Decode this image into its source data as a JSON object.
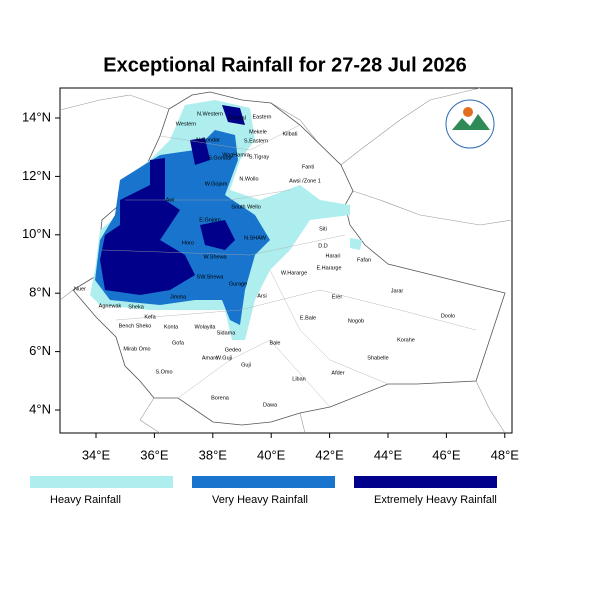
{
  "title": "Exceptional Rainfall for 27-28 Jul 2026",
  "x_axis": {
    "ticks": [
      "34°E",
      "36°E",
      "38°E",
      "40°E",
      "42°E",
      "44°E",
      "46°E",
      "48°E"
    ]
  },
  "y_axis": {
    "ticks": [
      "14°N",
      "12°N",
      "10°N",
      "8°N",
      "6°N",
      "4°N"
    ]
  },
  "legend": [
    {
      "label": "Heavy Rainfall",
      "color": "#aeeeee"
    },
    {
      "label": "Very Heavy Rainfall",
      "color": "#1874cd"
    },
    {
      "label": "Extremely Heavy Rainfall",
      "color": "#00008b"
    }
  ],
  "regions": [
    "N.Western",
    "Western",
    "Central",
    "Eastern",
    "Mekele",
    "Kilbati",
    "S.Eastern",
    "N.Gondar",
    "S.Tigray",
    "WagHamra",
    "Fanti",
    "S.Gondar",
    "Awsi /Zone 1",
    "N.Wollo",
    "W.Gojam",
    "Awi",
    "South Wello",
    "E.Gojam",
    "Siti",
    "Horo",
    "N.SHAW",
    "D.D",
    "Harari",
    "Fafan",
    "W.Hararge",
    "E.Hararge",
    "W.Shewa",
    "Jarar",
    "Erer",
    "Arsi",
    "Nuer",
    "Agnewak",
    "Jimma",
    "Gurage",
    "SW.Shewa",
    "Bench Sheko",
    "Konta",
    "Wolayita",
    "Sidama",
    "Bale",
    "E.Bale",
    "Nogob",
    "Doolo",
    "Korahe",
    "Gofa",
    "Mirab Omo",
    "Gedeo",
    "Shabelle",
    "Amaro",
    "W.Guji",
    "Guji",
    "S.Omo",
    "Liban",
    "Afder",
    "Borena",
    "Dawa",
    "Kefa",
    "Sheka"
  ]
}
